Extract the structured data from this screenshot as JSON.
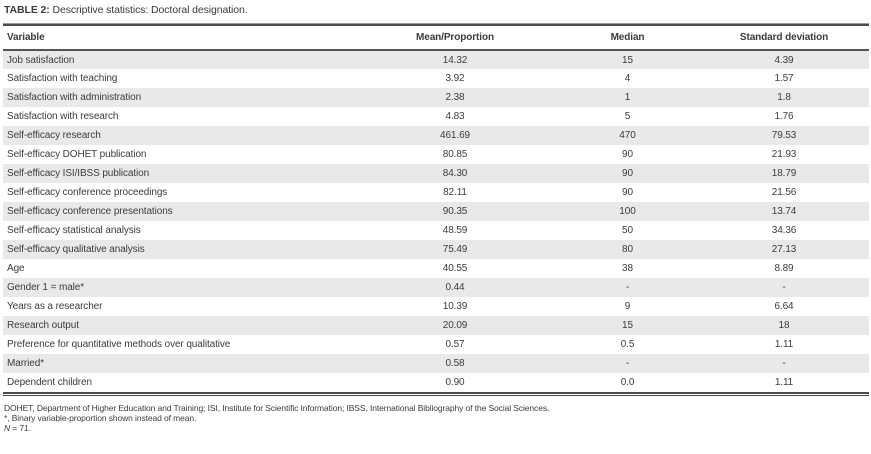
{
  "colors": {
    "stripe": "#e9e9e9",
    "rule": "#4c4c4e",
    "rule-light": "#98989a",
    "text": "#3c3c3e"
  },
  "title": {
    "label": "TABLE 2:",
    "text": " Descriptive statistics: Doctoral designation."
  },
  "table": {
    "columns": [
      "Variable",
      "Mean/Proportion",
      "Median",
      "Standard deviation"
    ],
    "rows": [
      {
        "variable": "Job satisfaction",
        "mean": "14.32",
        "median": "15",
        "sd": "4.39"
      },
      {
        "variable": "Satisfaction with teaching",
        "mean": "3.92",
        "median": "4",
        "sd": "1.57"
      },
      {
        "variable": "Satisfaction with administration",
        "mean": "2.38",
        "median": "1",
        "sd": "1.8"
      },
      {
        "variable": "Satisfaction with research",
        "mean": "4.83",
        "median": "5",
        "sd": "1.76"
      },
      {
        "variable": "Self-efficacy research",
        "mean": "461.69",
        "median": "470",
        "sd": "79.53"
      },
      {
        "variable": "Self-efficacy DOHET publication",
        "mean": "80.85",
        "median": "90",
        "sd": "21.93"
      },
      {
        "variable": "Self-efficacy ISI/IBSS publication",
        "mean": "84.30",
        "median": "90",
        "sd": "18.79"
      },
      {
        "variable": "Self-efficacy conference proceedings",
        "mean": "82.11",
        "median": "90",
        "sd": "21.56"
      },
      {
        "variable": "Self-efficacy conference presentations",
        "mean": "90.35",
        "median": "100",
        "sd": "13.74"
      },
      {
        "variable": "Self-efficacy statistical analysis",
        "mean": "48.59",
        "median": "50",
        "sd": "34.36"
      },
      {
        "variable": "Self-efficacy qualitative analysis",
        "mean": "75.49",
        "median": "80",
        "sd": "27.13"
      },
      {
        "variable": "Age",
        "mean": "40.55",
        "median": "38",
        "sd": "8.89"
      },
      {
        "variable": "Gender 1 = male*",
        "mean": "0.44",
        "median": "-",
        "sd": "-"
      },
      {
        "variable": "Years as a researcher",
        "mean": "10.39",
        "median": "9",
        "sd": "6.64"
      },
      {
        "variable": "Research output",
        "mean": "20.09",
        "median": "15",
        "sd": "18"
      },
      {
        "variable": "Preference for quantitative methods over qualitative",
        "mean": "0.57",
        "median": "0.5",
        "sd": "1.11"
      },
      {
        "variable": "Married*",
        "mean": "0.58",
        "median": "-",
        "sd": "-"
      },
      {
        "variable": "Dependent children",
        "mean": "0.90",
        "median": "0.0",
        "sd": "1.11"
      }
    ]
  },
  "footnotes": {
    "abbreviations": "DOHET, Department of Higher Education and Training; ISI, Institute for Scientific Information; IBSS, International Bibliography of the Social Sciences.",
    "binary": "*, Binary variable-proportion shown instead of mean.",
    "n_label": "N",
    "n_rest": " = 71."
  }
}
